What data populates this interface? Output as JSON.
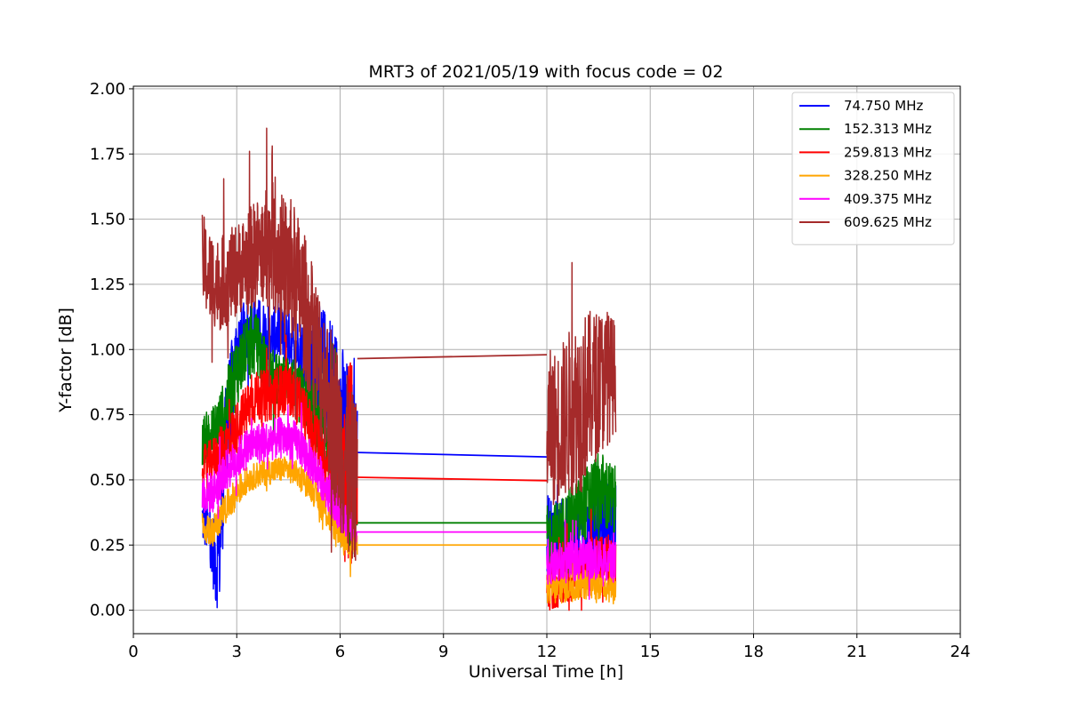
{
  "chart_data": {
    "type": "line",
    "title": "MRT3 of 2021/05/19 with focus code = 02",
    "xlabel": "Universal Time [h]",
    "ylabel": "Y-factor [dB]",
    "xlim": [
      0,
      24
    ],
    "ylim": [
      -0.09,
      2.01
    ],
    "xticks": [
      0,
      3,
      6,
      9,
      12,
      15,
      18,
      21,
      24
    ],
    "xtick_labels": [
      "0",
      "3",
      "6",
      "9",
      "12",
      "15",
      "18",
      "21",
      "24"
    ],
    "yticks": [
      0.0,
      0.25,
      0.5,
      0.75,
      1.0,
      1.25,
      1.5,
      1.75,
      2.0
    ],
    "ytick_labels": [
      "0.00",
      "0.25",
      "0.50",
      "0.75",
      "1.00",
      "1.25",
      "1.50",
      "1.75",
      "2.00"
    ],
    "grid": true,
    "legend_position": "top-right",
    "series": [
      {
        "name": " 74.750 MHz",
        "color": "#0000ff",
        "segments": [
          {
            "x": [
              2.0,
              2.2,
              2.4,
              2.5,
              2.7,
              3.0,
              3.3,
              3.6,
              3.9,
              4.2,
              4.5,
              4.8,
              5.1,
              5.4,
              5.7,
              6.0,
              6.3,
              6.5
            ],
            "center": [
              0.35,
              0.3,
              0.18,
              0.22,
              0.7,
              1.0,
              1.08,
              1.1,
              1.05,
              1.06,
              1.05,
              1.0,
              0.98,
              0.95,
              0.88,
              0.75,
              0.62,
              0.6
            ],
            "amp": [
              0.1,
              0.1,
              0.18,
              0.2,
              0.22,
              0.15,
              0.12,
              0.1,
              0.12,
              0.1,
              0.12,
              0.12,
              0.15,
              0.22,
              0.28,
              0.3,
              0.3,
              0.2
            ]
          },
          {
            "x": [
              12.0,
              12.3,
              12.6,
              13.0,
              13.3,
              13.6,
              14.0
            ],
            "center": [
              0.3,
              0.28,
              0.28,
              0.3,
              0.32,
              0.32,
              0.3
            ],
            "amp": [
              0.15,
              0.15,
              0.15,
              0.15,
              0.16,
              0.18,
              0.2
            ]
          }
        ],
        "bridge": {
          "x": [
            6.5,
            12.0
          ],
          "y": [
            0.605,
            0.588
          ]
        }
      },
      {
        "name": "152.313 MHz",
        "color": "#008000",
        "segments": [
          {
            "x": [
              2.0,
              2.3,
              2.6,
              3.0,
              3.3,
              3.6,
              3.9,
              4.2,
              4.5,
              4.8,
              5.1,
              5.4,
              5.7,
              6.0,
              6.3,
              6.5
            ],
            "center": [
              0.65,
              0.68,
              0.75,
              0.92,
              1.0,
              1.02,
              0.9,
              0.88,
              0.9,
              0.85,
              0.78,
              0.72,
              0.65,
              0.55,
              0.4,
              0.35
            ],
            "amp": [
              0.1,
              0.1,
              0.12,
              0.14,
              0.12,
              0.12,
              0.12,
              0.1,
              0.1,
              0.1,
              0.12,
              0.15,
              0.18,
              0.2,
              0.2,
              0.1
            ]
          },
          {
            "x": [
              12.0,
              12.3,
              12.6,
              13.0,
              13.3,
              13.6,
              14.0
            ],
            "center": [
              0.28,
              0.3,
              0.34,
              0.38,
              0.44,
              0.46,
              0.4
            ],
            "amp": [
              0.12,
              0.12,
              0.12,
              0.14,
              0.15,
              0.15,
              0.15
            ]
          }
        ],
        "bridge": {
          "x": [
            6.5,
            12.0
          ],
          "y": [
            0.335,
            0.335
          ]
        }
      },
      {
        "name": "259.813 MHz",
        "color": "#ff0000",
        "segments": [
          {
            "x": [
              2.0,
              2.3,
              2.6,
              3.0,
              3.3,
              3.6,
              3.9,
              4.2,
              4.5,
              4.8,
              5.1,
              5.4,
              5.7,
              6.0,
              6.3,
              6.5
            ],
            "center": [
              0.55,
              0.58,
              0.62,
              0.7,
              0.78,
              0.82,
              0.82,
              0.84,
              0.85,
              0.8,
              0.72,
              0.62,
              0.52,
              0.45,
              0.55,
              0.52
            ],
            "amp": [
              0.08,
              0.08,
              0.1,
              0.1,
              0.1,
              0.1,
              0.1,
              0.1,
              0.1,
              0.1,
              0.1,
              0.12,
              0.15,
              0.2,
              0.45,
              0.2
            ]
          },
          {
            "x": [
              12.0,
              12.3,
              12.6,
              13.0,
              13.3,
              13.6,
              14.0
            ],
            "center": [
              0.1,
              0.1,
              0.12,
              0.15,
              0.18,
              0.2,
              0.18
            ],
            "amp": [
              0.1,
              0.1,
              0.1,
              0.1,
              0.1,
              0.1,
              0.1
            ]
          }
        ],
        "bridge": {
          "x": [
            6.5,
            12.0
          ],
          "y": [
            0.51,
            0.497
          ]
        }
      },
      {
        "name": "328.250 MHz",
        "color": "#ffa500",
        "segments": [
          {
            "x": [
              2.0,
              2.3,
              2.6,
              3.0,
              3.3,
              3.6,
              3.9,
              4.2,
              4.5,
              4.8,
              5.1,
              5.4,
              5.7,
              6.0,
              6.3,
              6.5
            ],
            "center": [
              0.32,
              0.3,
              0.38,
              0.45,
              0.5,
              0.52,
              0.53,
              0.54,
              0.54,
              0.52,
              0.48,
              0.42,
              0.35,
              0.3,
              0.26,
              0.25
            ],
            "amp": [
              0.06,
              0.06,
              0.06,
              0.06,
              0.05,
              0.05,
              0.05,
              0.05,
              0.05,
              0.05,
              0.05,
              0.06,
              0.06,
              0.06,
              0.06,
              0.04
            ]
          },
          {
            "x": [
              12.0,
              12.3,
              12.6,
              13.0,
              13.3,
              13.6,
              14.0
            ],
            "center": [
              0.08,
              0.08,
              0.09,
              0.1,
              0.1,
              0.1,
              0.08
            ],
            "amp": [
              0.06,
              0.06,
              0.06,
              0.06,
              0.06,
              0.06,
              0.06
            ]
          }
        ],
        "bridge": {
          "x": [
            6.5,
            12.0
          ],
          "y": [
            0.25,
            0.25
          ]
        }
      },
      {
        "name": "409.375 MHz",
        "color": "#ff00ff",
        "segments": [
          {
            "x": [
              2.0,
              2.3,
              2.6,
              3.0,
              3.3,
              3.6,
              3.9,
              4.2,
              4.5,
              4.8,
              5.1,
              5.4,
              5.7,
              6.0,
              6.3,
              6.5
            ],
            "center": [
              0.45,
              0.45,
              0.52,
              0.58,
              0.62,
              0.64,
              0.65,
              0.66,
              0.66,
              0.64,
              0.58,
              0.52,
              0.45,
              0.38,
              0.32,
              0.3
            ],
            "amp": [
              0.08,
              0.08,
              0.08,
              0.08,
              0.08,
              0.08,
              0.08,
              0.08,
              0.08,
              0.08,
              0.08,
              0.08,
              0.08,
              0.08,
              0.06,
              0.04
            ]
          },
          {
            "x": [
              12.0,
              12.3,
              12.6,
              13.0,
              13.3,
              13.6,
              14.0
            ],
            "center": [
              0.18,
              0.18,
              0.18,
              0.2,
              0.2,
              0.2,
              0.18
            ],
            "amp": [
              0.08,
              0.08,
              0.08,
              0.08,
              0.08,
              0.08,
              0.08
            ]
          }
        ],
        "bridge": {
          "x": [
            6.5,
            12.0
          ],
          "y": [
            0.3,
            0.3
          ]
        }
      },
      {
        "name": "609.625 MHz",
        "color": "#a52a2a",
        "segments": [
          {
            "x": [
              2.0,
              2.2,
              2.5,
              2.8,
              3.1,
              3.4,
              3.7,
              4.0,
              4.3,
              4.6,
              4.9,
              5.2,
              5.5,
              5.8,
              6.1,
              6.3,
              6.5
            ],
            "center": [
              1.35,
              1.28,
              1.25,
              1.28,
              1.32,
              1.35,
              1.38,
              1.4,
              1.35,
              1.3,
              1.2,
              1.05,
              0.9,
              0.75,
              0.6,
              0.5,
              0.5
            ],
            "amp": [
              0.18,
              0.18,
              0.18,
              0.18,
              0.18,
              0.2,
              0.22,
              0.25,
              0.25,
              0.28,
              0.28,
              0.28,
              0.3,
              0.32,
              0.35,
              0.35,
              0.3
            ]
          },
          {
            "x": [
              12.0,
              12.3,
              12.6,
              13.0,
              13.3,
              13.6,
              14.0
            ],
            "center": [
              0.7,
              0.7,
              0.75,
              0.8,
              0.85,
              0.88,
              0.9
            ],
            "amp": [
              0.3,
              0.3,
              0.32,
              0.35,
              0.3,
              0.28,
              0.22
            ]
          }
        ],
        "bridge": {
          "x": [
            6.5,
            12.0
          ],
          "y": [
            0.965,
            0.98
          ]
        }
      }
    ]
  }
}
